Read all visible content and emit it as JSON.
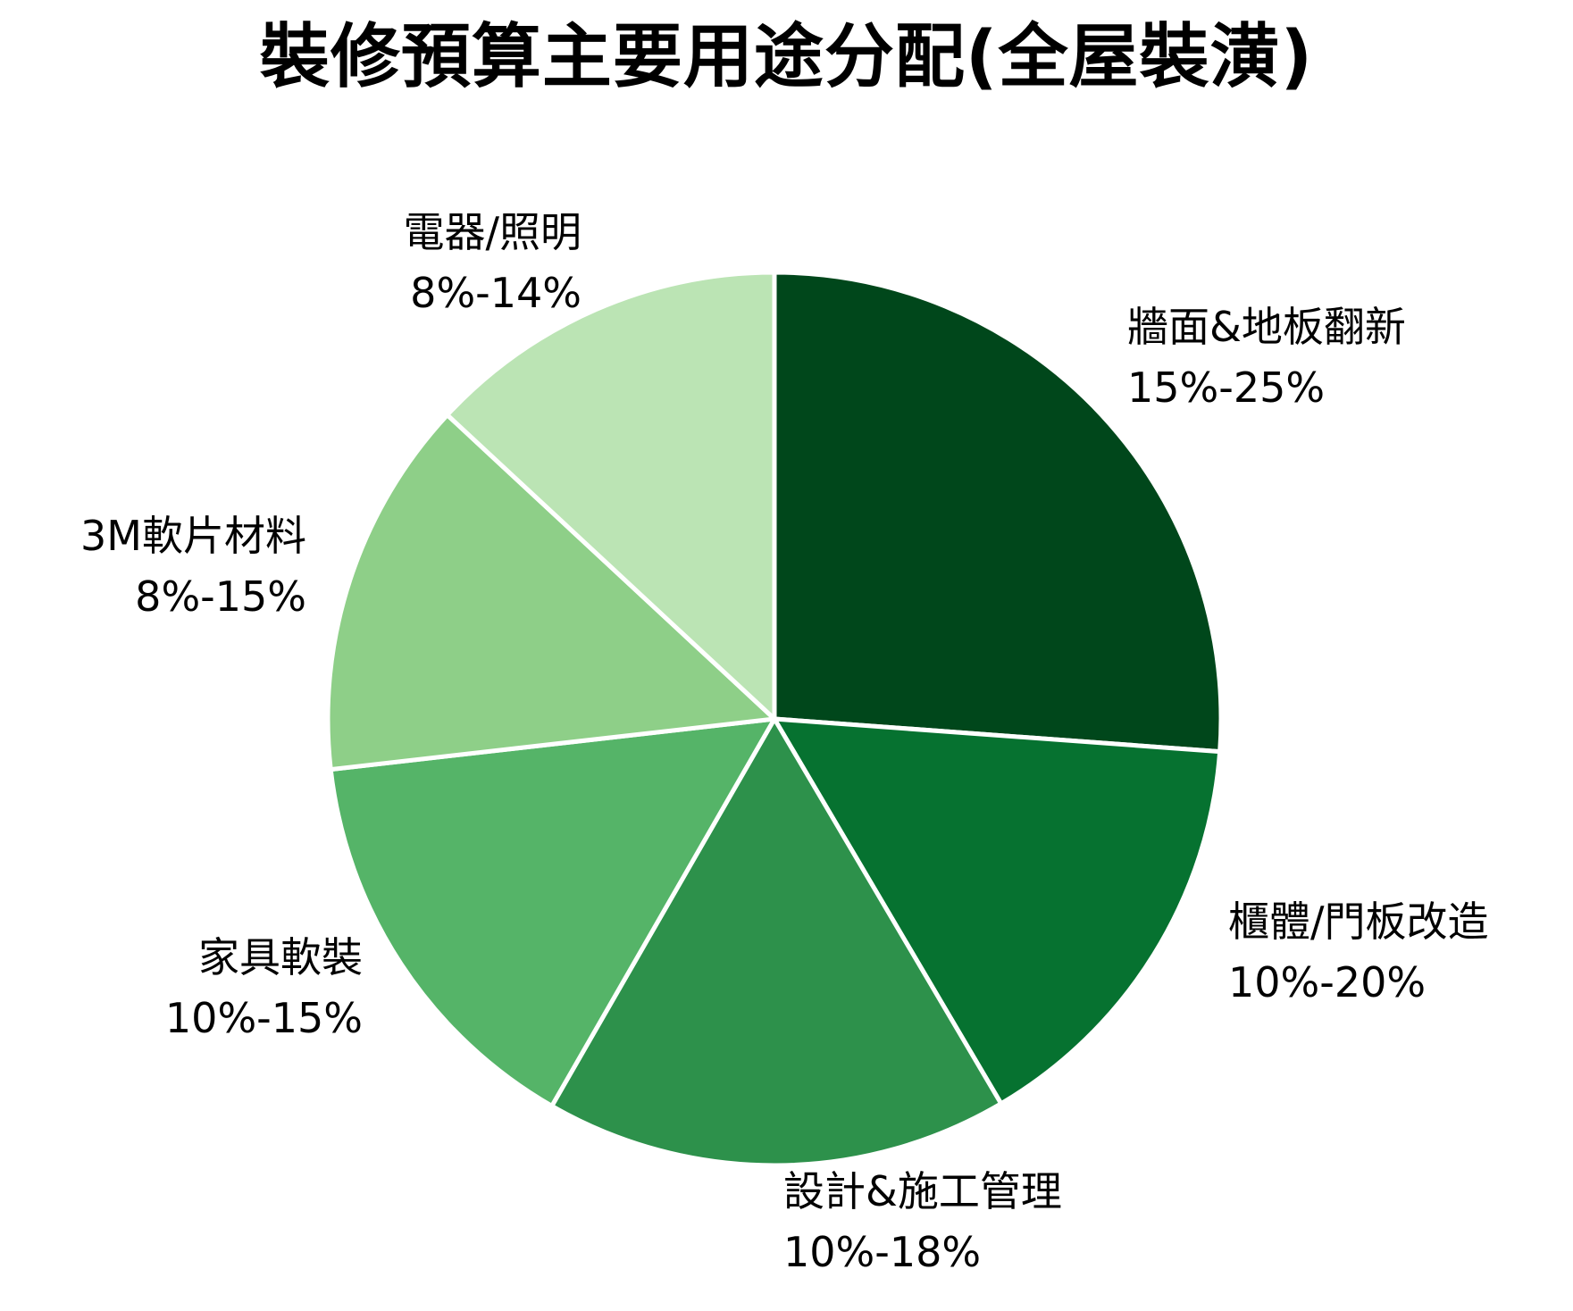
{
  "chart_data": {
    "type": "pie",
    "title": "裝修預算主要用途分配(全屋裝潢)",
    "start_angle_deg": 0,
    "direction": "clockwise",
    "center": [
      867,
      805
    ],
    "radius": 500,
    "slices": [
      {
        "label": "牆面&地板翻新",
        "range": "15%-25%",
        "value": 94.2,
        "color": "#00471b"
      },
      {
        "label": "櫃體/門板改造",
        "range": "10%-20%",
        "value": 55.3,
        "color": "#067230"
      },
      {
        "label": "設計&施工管理",
        "range": "10%-18%",
        "value": 60.4,
        "color": "#2d914b"
      },
      {
        "label": "家具軟裝",
        "range": "10%-15%",
        "value": 53.6,
        "color": "#55b468"
      },
      {
        "label": "3M軟片材料",
        "range": "8%-15%",
        "value": 49.4,
        "color": "#8ecf88"
      },
      {
        "label": "電器/照明",
        "range": "8%-14%",
        "value": 47.1,
        "color": "#bbe4b4"
      }
    ],
    "legend": "none (direct labels)",
    "grid": false
  },
  "labels": [
    {
      "name": "牆面&地板翻新",
      "range": "15%-25%"
    },
    {
      "name": "櫃體/門板改造",
      "range": "10%-20%"
    },
    {
      "name": "設計&施工管理",
      "range": "10%-18%"
    },
    {
      "name": "家具軟裝",
      "range": "10%-15%"
    },
    {
      "name": "3M軟片材料",
      "range": "8%-15%"
    },
    {
      "name": "電器/照明",
      "range": "8%-14%"
    }
  ]
}
